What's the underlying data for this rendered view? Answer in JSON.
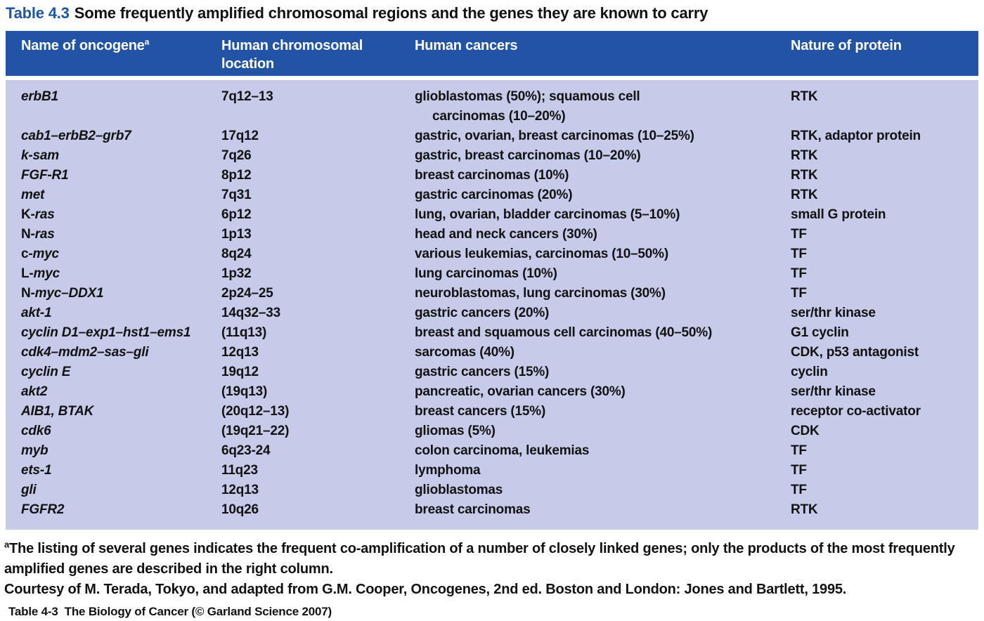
{
  "title": {
    "label": "Table 4.3",
    "text": "Some frequently amplified chromosomal regions and the genes they are known to carry"
  },
  "header": {
    "col1": "Name of oncogene",
    "col1_sup": "a",
    "col2": "Human chromosomal location",
    "col3": "Human cancers",
    "col4": "Nature of protein"
  },
  "rows": [
    {
      "prefix": "",
      "gene": "erbB1",
      "location": "7q12–13",
      "cancers": "glioblastomas (50%); squamous cell",
      "cancers2": "carcinomas (10–20%)",
      "protein": "RTK"
    },
    {
      "prefix": "",
      "gene": "cab1–erbB2–grb7",
      "location": "17q12",
      "cancers": "gastric, ovarian, breast carcinomas (10–25%)",
      "cancers2": "",
      "protein": "RTK, adaptor protein"
    },
    {
      "prefix": "",
      "gene": "k-sam",
      "location": "7q26",
      "cancers": "gastric, breast carcinomas (10–20%)",
      "cancers2": "",
      "protein": "RTK"
    },
    {
      "prefix": "",
      "gene": "FGF-R1",
      "location": "8p12",
      "cancers": "breast carcinomas (10%)",
      "cancers2": "",
      "protein": "RTK"
    },
    {
      "prefix": "",
      "gene": "met",
      "location": "7q31",
      "cancers": "gastric carcinomas (20%)",
      "cancers2": "",
      "protein": "RTK"
    },
    {
      "prefix": "K-",
      "gene": "ras",
      "location": "6p12",
      "cancers": "lung, ovarian, bladder carcinomas (5–10%)",
      "cancers2": "",
      "protein": "small G protein"
    },
    {
      "prefix": "N-",
      "gene": "ras",
      "location": "1p13",
      "cancers": "head and neck cancers (30%)",
      "cancers2": "",
      "protein": "TF"
    },
    {
      "prefix": "c-",
      "gene": "myc",
      "location": "8q24",
      "cancers": "various leukemias, carcinomas (10–50%)",
      "cancers2": "",
      "protein": "TF"
    },
    {
      "prefix": "L-",
      "gene": "myc",
      "location": "1p32",
      "cancers": "lung carcinomas (10%)",
      "cancers2": "",
      "protein": "TF"
    },
    {
      "prefix": "N-",
      "gene": "myc–DDX1",
      "location": "2p24–25",
      "cancers": "neuroblastomas, lung carcinomas (30%)",
      "cancers2": "",
      "protein": "TF"
    },
    {
      "prefix": "",
      "gene": "akt-1",
      "location": "14q32–33",
      "cancers": "gastric cancers (20%)",
      "cancers2": "",
      "protein": "ser/thr kinase"
    },
    {
      "prefix": "",
      "gene": "cyclin D1–exp1–hst1–ems1",
      "location": "(11q13)",
      "cancers": "breast and squamous cell carcinomas (40–50%)",
      "cancers2": "",
      "protein": "G1 cyclin"
    },
    {
      "prefix": "",
      "gene": "cdk4–mdm2–sas–gli",
      "location": "12q13",
      "cancers": "sarcomas (40%)",
      "cancers2": "",
      "protein": "CDK, p53 antagonist"
    },
    {
      "prefix": "",
      "gene": "cyclin E",
      "location": "19q12",
      "cancers": "gastric cancers (15%)",
      "cancers2": "",
      "protein": "cyclin"
    },
    {
      "prefix": "",
      "gene": "akt2",
      "location": "(19q13)",
      "cancers": "pancreatic, ovarian cancers (30%)",
      "cancers2": "",
      "protein": "ser/thr kinase"
    },
    {
      "prefix": "",
      "gene": "AIB1, BTAK",
      "location": "(20q12–13)",
      "cancers": "breast cancers (15%)",
      "cancers2": "",
      "protein": "receptor co-activator"
    },
    {
      "prefix": "",
      "gene": "cdk6",
      "location": "(19q21–22)",
      "cancers": "gliomas (5%)",
      "cancers2": "",
      "protein": "CDK"
    },
    {
      "prefix": "",
      "gene": "myb",
      "location": "6q23-24",
      "cancers": "colon carcinoma, leukemias",
      "cancers2": "",
      "protein": "TF"
    },
    {
      "prefix": "",
      "gene": "ets-1",
      "location": "11q23",
      "cancers": "lymphoma",
      "cancers2": "",
      "protein": "TF"
    },
    {
      "prefix": "",
      "gene": "gli",
      "location": "12q13",
      "cancers": "glioblastomas",
      "cancers2": "",
      "protein": "TF"
    },
    {
      "prefix": "",
      "gene": "FGFR2",
      "location": "10q26",
      "cancers": "breast carcinomas",
      "cancers2": "",
      "protein": "RTK"
    }
  ],
  "footnote": {
    "sup": "a",
    "text": "The listing of several genes indicates the frequent co-amplification of a number of closely linked genes; only the products of the most frequently amplified genes are described in the right column."
  },
  "courtesy": "Courtesy of M. Terada, Tokyo, and adapted from G.M. Cooper, Oncogenes, 2nd ed. Boston and London: Jones and Bartlett, 1995.",
  "credit": "Table 4-3  The Biology of Cancer (© Garland Science 2007)",
  "colors": {
    "header_bg": "#2254a6",
    "body_bg": "#c5cbe9",
    "title_blue": "#1d57a9",
    "text": "#121212"
  }
}
